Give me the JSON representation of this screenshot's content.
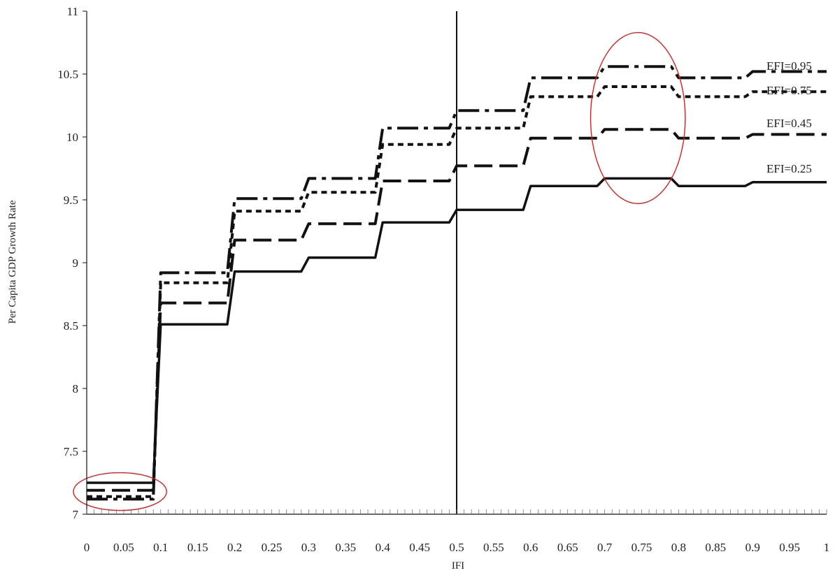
{
  "chart_data": {
    "type": "line",
    "title": "",
    "xlabel": "IFI",
    "ylabel": "Per Capita GDP Growth Rate",
    "xlim": [
      0,
      1
    ],
    "ylim": [
      7,
      11
    ],
    "x_ticks": [
      "0",
      "0.05",
      "0.1",
      "0.15",
      "0.2",
      "0.25",
      "0.3",
      "0.35",
      "0.4",
      "0.45",
      "0.5",
      "0.55",
      "0.6",
      "0.65",
      "0.7",
      "0.75",
      "0.8",
      "0.85",
      "0.9",
      "0.95",
      "1"
    ],
    "y_ticks": [
      "7",
      "7.5",
      "8",
      "8.5",
      "9",
      "9.5",
      "10",
      "10.5",
      "11"
    ],
    "grid": false,
    "vertical_reference_line_x": 0.5,
    "series": [
      {
        "name": "EFI=0.25",
        "style": "solid",
        "x": [
          0,
          0.09,
          0.1,
          0.19,
          0.2,
          0.29,
          0.3,
          0.39,
          0.4,
          0.49,
          0.5,
          0.59,
          0.6,
          0.69,
          0.7,
          0.79,
          0.8,
          0.89,
          0.9,
          1.0
        ],
        "y": [
          7.25,
          7.25,
          8.51,
          8.51,
          8.93,
          8.93,
          9.04,
          9.04,
          9.32,
          9.32,
          9.42,
          9.42,
          9.61,
          9.61,
          9.67,
          9.67,
          9.61,
          9.61,
          9.64,
          9.64
        ]
      },
      {
        "name": "EFI=0.45",
        "style": "long-dash",
        "x": [
          0,
          0.09,
          0.1,
          0.19,
          0.2,
          0.29,
          0.3,
          0.39,
          0.4,
          0.49,
          0.5,
          0.59,
          0.6,
          0.69,
          0.7,
          0.79,
          0.8,
          0.89,
          0.9,
          1.0
        ],
        "y": [
          7.19,
          7.19,
          8.68,
          8.68,
          9.18,
          9.18,
          9.31,
          9.31,
          9.65,
          9.65,
          9.77,
          9.77,
          9.99,
          9.99,
          10.06,
          10.06,
          9.99,
          9.99,
          10.02,
          10.02
        ]
      },
      {
        "name": "EFI=0.75",
        "style": "dotted",
        "x": [
          0,
          0.09,
          0.1,
          0.19,
          0.2,
          0.29,
          0.3,
          0.39,
          0.4,
          0.49,
          0.5,
          0.59,
          0.6,
          0.69,
          0.7,
          0.79,
          0.8,
          0.89,
          0.9,
          1.0
        ],
        "y": [
          7.14,
          7.14,
          8.84,
          8.84,
          9.41,
          9.41,
          9.56,
          9.56,
          9.94,
          9.94,
          10.07,
          10.07,
          10.32,
          10.32,
          10.4,
          10.4,
          10.32,
          10.32,
          10.36,
          10.36
        ]
      },
      {
        "name": "EFI=0.95",
        "style": "dash-dot",
        "x": [
          0,
          0.09,
          0.1,
          0.19,
          0.2,
          0.29,
          0.3,
          0.39,
          0.4,
          0.49,
          0.5,
          0.59,
          0.6,
          0.69,
          0.7,
          0.79,
          0.8,
          0.89,
          0.9,
          1.0
        ],
        "y": [
          7.12,
          7.12,
          8.92,
          8.92,
          9.51,
          9.51,
          9.67,
          9.67,
          10.07,
          10.07,
          10.21,
          10.21,
          10.47,
          10.47,
          10.56,
          10.56,
          10.47,
          10.47,
          10.52,
          10.52
        ]
      }
    ],
    "annotations": [
      {
        "type": "ellipse",
        "color": "#e11d1d",
        "center": [
          0.045,
          7.18
        ],
        "radius": [
          0.063,
          0.15
        ]
      },
      {
        "type": "ellipse",
        "color": "#e11d1d",
        "center": [
          0.745,
          10.15
        ],
        "radius": [
          0.064,
          0.68
        ]
      }
    ]
  },
  "colors": {
    "series": "#111111",
    "axis": "#111111",
    "annotation": "#e11d1d"
  }
}
